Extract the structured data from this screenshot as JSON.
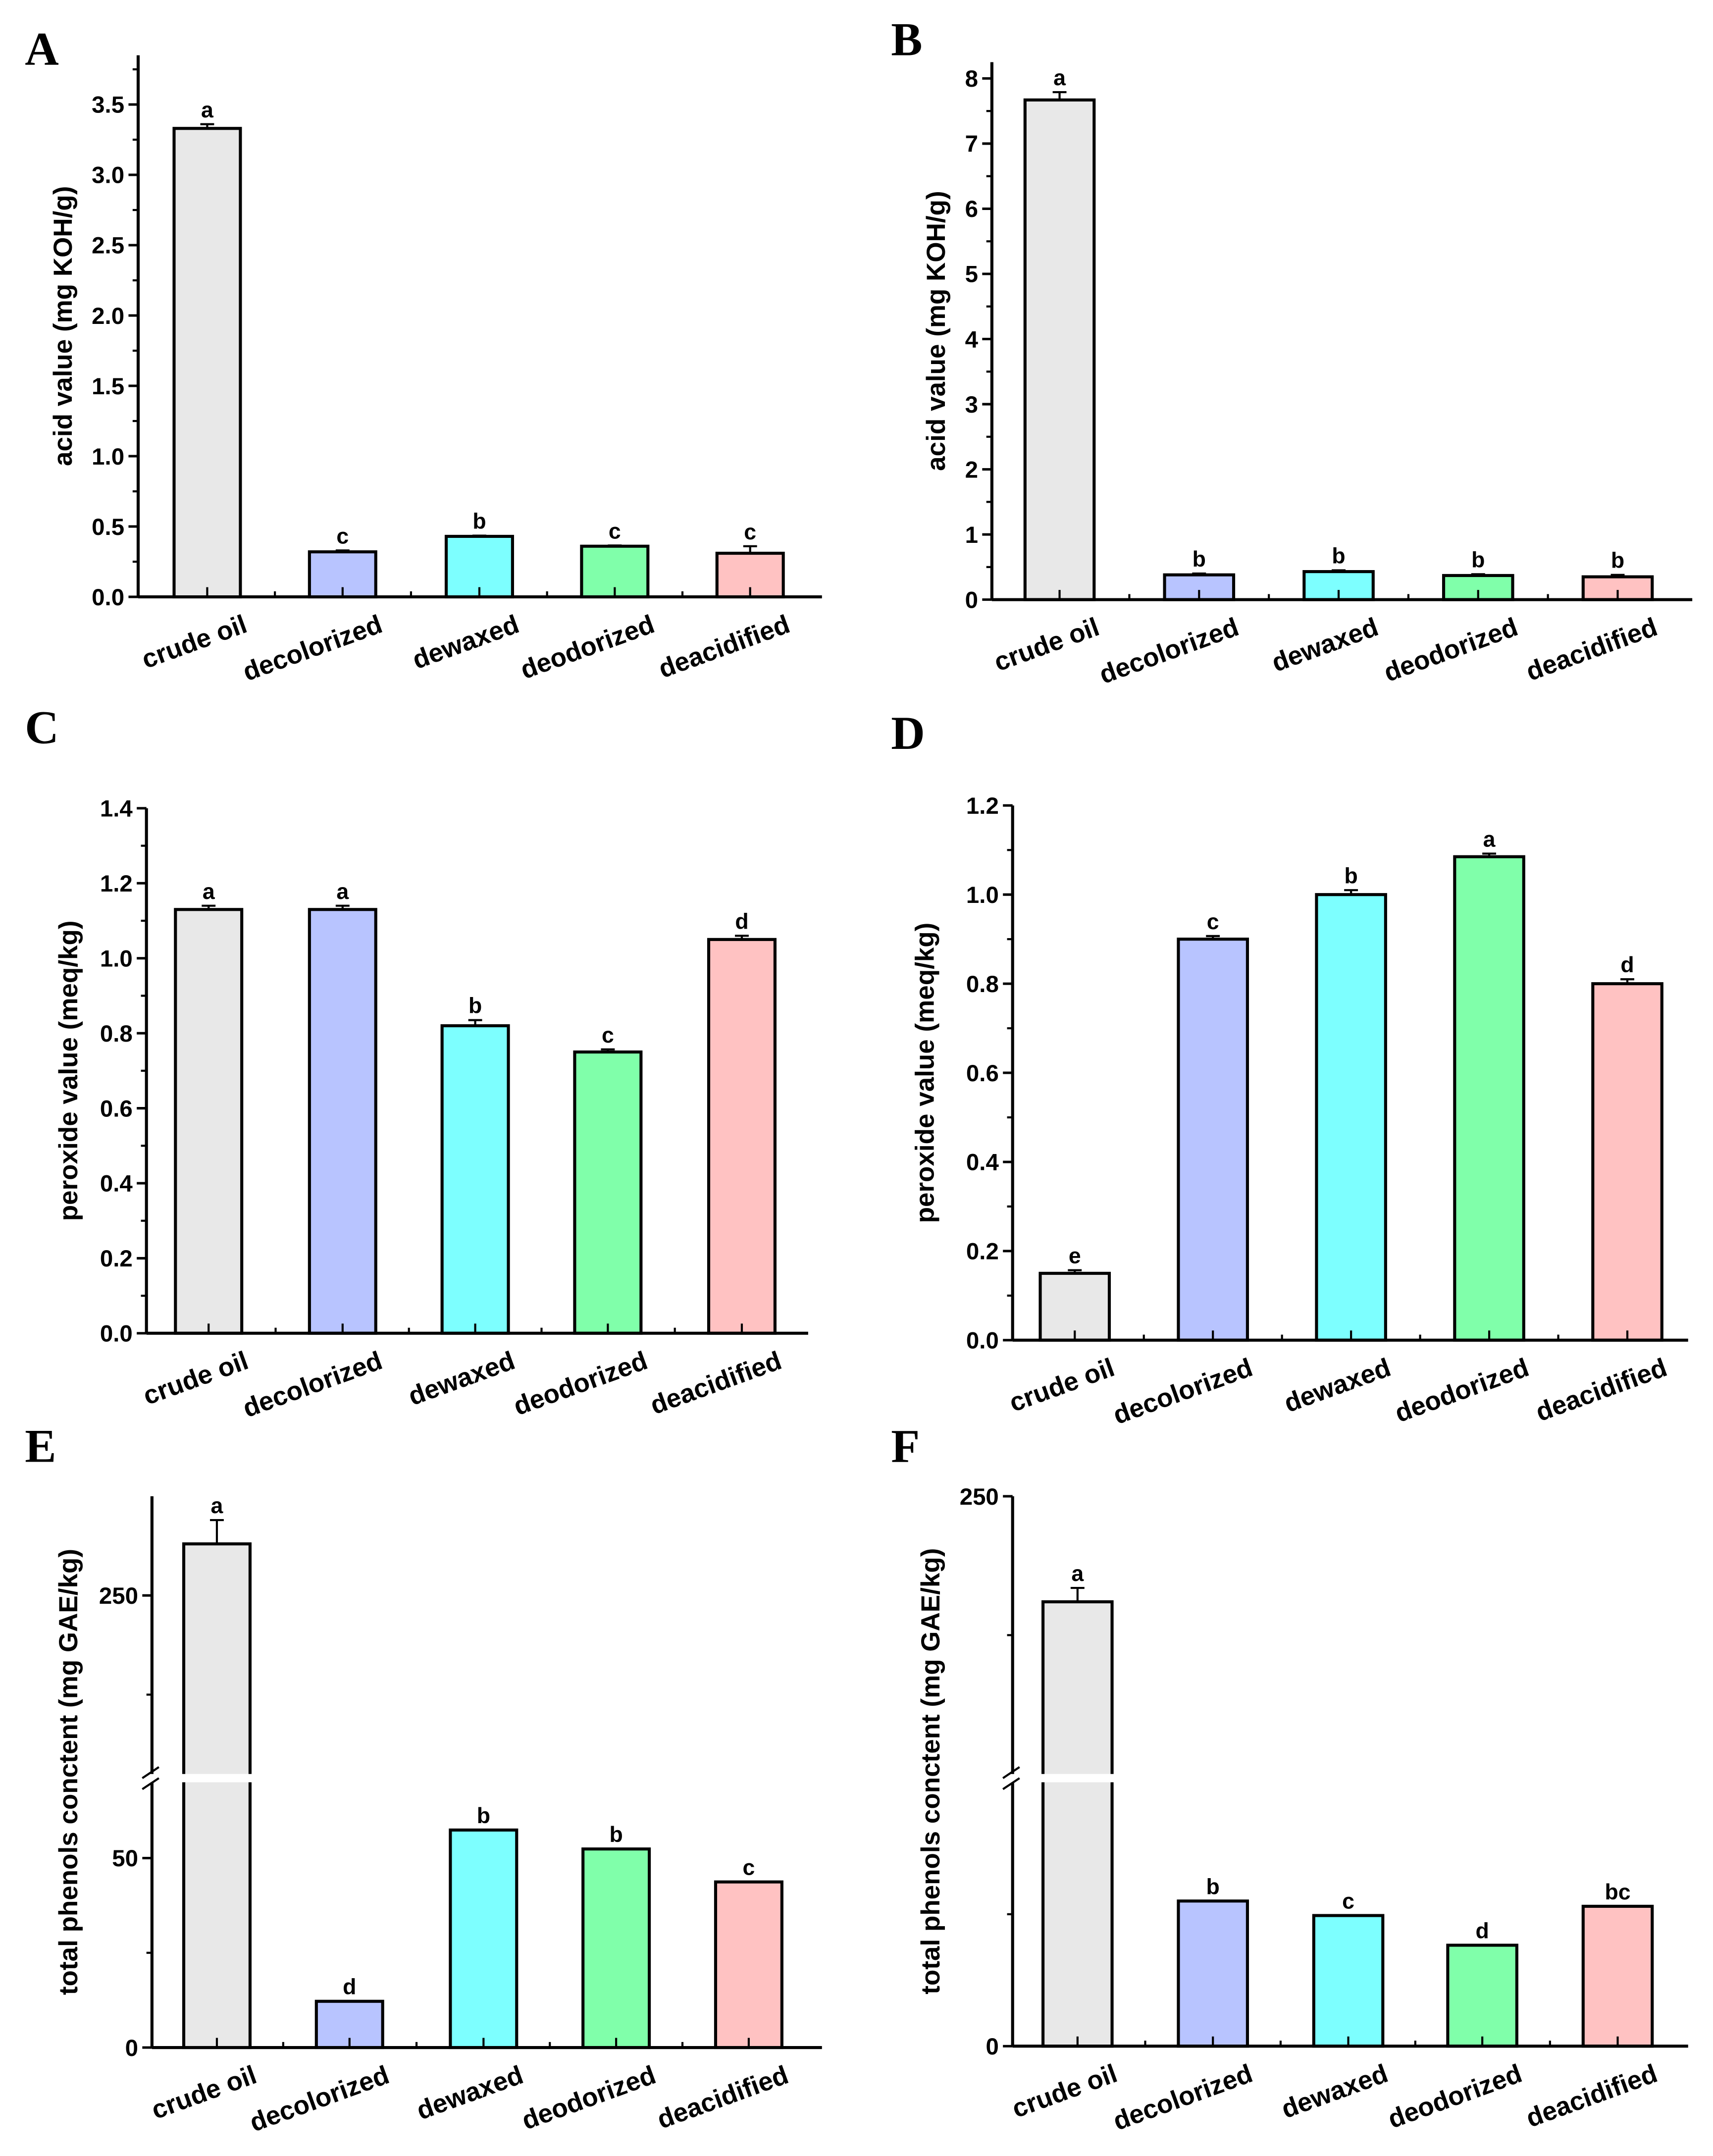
{
  "chart_data": [
    {
      "panel": "A",
      "type": "bar",
      "ylabel": "acid value (mg KOH/g)",
      "categories": [
        "crude oil",
        "decolorized",
        "dewaxed",
        "deodorized",
        "deacidified"
      ],
      "values": [
        3.33,
        0.32,
        0.43,
        0.36,
        0.31
      ],
      "errors": [
        0.03,
        0.01,
        0.005,
        0.005,
        0.05
      ],
      "significance": [
        "a",
        "c",
        "b",
        "c",
        "c"
      ],
      "ylim": [
        0,
        3.85
      ],
      "yticks": [
        "0.0",
        "0.5",
        "1.0",
        "1.5",
        "2.0",
        "2.5",
        "3.0",
        "3.5"
      ],
      "minor_step": 0.25
    },
    {
      "panel": "B",
      "type": "bar",
      "ylabel": "acid value (mg KOH/g)",
      "categories": [
        "crude oil",
        "decolorized",
        "dewaxed",
        "deodorized",
        "deacidified"
      ],
      "values": [
        7.67,
        0.38,
        0.43,
        0.37,
        0.35
      ],
      "errors": [
        0.12,
        0.02,
        0.02,
        0.02,
        0.03
      ],
      "significance": [
        "a",
        "b",
        "b",
        "b",
        "b"
      ],
      "ylim": [
        0,
        8.25
      ],
      "yticks": [
        "0",
        "1",
        "2",
        "3",
        "4",
        "5",
        "6",
        "7",
        "8"
      ],
      "minor_step": 0.5
    },
    {
      "panel": "C",
      "type": "bar",
      "ylabel": "peroxide value (meq/kg)",
      "categories": [
        "crude oil",
        "decolorized",
        "dewaxed",
        "deodorized",
        "deacidified"
      ],
      "values": [
        1.13,
        1.13,
        0.82,
        0.75,
        1.05
      ],
      "errors": [
        0.01,
        0.01,
        0.015,
        0.007,
        0.01
      ],
      "significance": [
        "a",
        "a",
        "b",
        "c",
        "d"
      ],
      "ylim": [
        0,
        1.4
      ],
      "yticks": [
        "0.0",
        "0.2",
        "0.4",
        "0.6",
        "0.8",
        "1.0",
        "1.2",
        "1.4"
      ],
      "minor_step": 0.1
    },
    {
      "panel": "D",
      "type": "bar",
      "ylabel": "peroxide value (meq/kg)",
      "categories": [
        "crude oil",
        "decolorized",
        "dewaxed",
        "deodorized",
        "deacidified"
      ],
      "values": [
        0.15,
        0.9,
        1.0,
        1.085,
        0.8
      ],
      "errors": [
        0.007,
        0.007,
        0.01,
        0.007,
        0.01
      ],
      "significance": [
        "e",
        "c",
        "b",
        "a",
        "d"
      ],
      "ylim": [
        0,
        1.2
      ],
      "yticks": [
        "0.0",
        "0.2",
        "0.4",
        "0.6",
        "0.8",
        "1.0",
        "1.2"
      ],
      "minor_step": 0.1
    },
    {
      "panel": "E",
      "type": "bar",
      "ylabel": "total phenols conctent (mg GAE/kg)",
      "categories": [
        "crude oil",
        "decolorized",
        "dewaxed",
        "deodorized",
        "deacidified"
      ],
      "values": [
        263,
        12.2,
        57.4,
        52.4,
        43.7
      ],
      "errors": [
        6,
        0,
        0,
        0,
        0
      ],
      "significance": [
        "a",
        "d",
        "b",
        "b",
        "c"
      ],
      "ylim": [
        0,
        275
      ],
      "axis_break": [
        70,
        205
      ],
      "yticks": [
        "0",
        "50",
        "250"
      ],
      "minor_ticks": [
        25,
        225
      ]
    },
    {
      "panel": "F",
      "type": "bar",
      "ylabel": "total phenols conctent (mg GAE/kg)",
      "categories": [
        "crude oil",
        "decolorized",
        "dewaxed",
        "deodorized",
        "deacidified"
      ],
      "values": [
        212,
        22,
        19.8,
        15.3,
        21.2
      ],
      "errors": [
        5,
        0,
        0,
        0,
        0
      ],
      "significance": [
        "a",
        "b",
        "c",
        "d",
        "bc"
      ],
      "ylim": [
        0,
        250
      ],
      "axis_break": [
        40,
        150
      ],
      "yticks": [
        "0",
        "250"
      ],
      "minor_ticks": [
        20,
        200
      ]
    }
  ],
  "colors": [
    "#e8e8e8",
    "#b8c4ff",
    "#7dffff",
    "#80ffaa",
    "#ffc2c2"
  ]
}
